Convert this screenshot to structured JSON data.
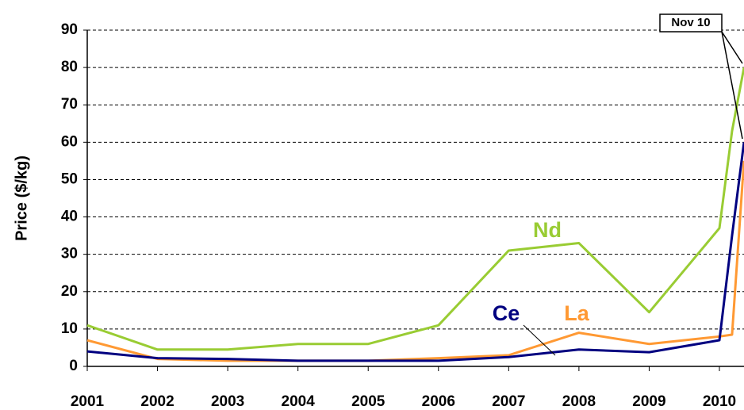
{
  "chart_data": {
    "type": "line",
    "ylabel": "Price ($/kg)",
    "x": [
      2001,
      2002,
      2003,
      2004,
      2005,
      2006,
      2007,
      2008,
      2009,
      2010,
      2010.18,
      2010.35
    ],
    "series": [
      {
        "name": "Nd",
        "color": "#99cc33",
        "values": [
          11,
          4.5,
          4.5,
          6,
          6,
          11,
          31,
          33,
          14.5,
          37,
          63,
          80
        ]
      },
      {
        "name": "La",
        "color": "#ff9933",
        "values": [
          7,
          2,
          1.5,
          1.5,
          1.5,
          2.2,
          3,
          9,
          6,
          8,
          8.5,
          55
        ]
      },
      {
        "name": "Ce",
        "color": "#000080",
        "values": [
          4,
          2.2,
          2,
          1.5,
          1.5,
          1.5,
          2.5,
          4.5,
          3.8,
          7,
          35,
          60
        ]
      }
    ],
    "annotation": "Nov 10",
    "xlim": [
      2001,
      2010.35
    ],
    "xticks": [
      2001,
      2002,
      2003,
      2004,
      2005,
      2006,
      2007,
      2008,
      2009,
      2010
    ],
    "ylim": [
      0,
      90
    ],
    "yticks": [
      0,
      10,
      20,
      30,
      40,
      50,
      60,
      70,
      80,
      90
    ],
    "grid": true
  }
}
